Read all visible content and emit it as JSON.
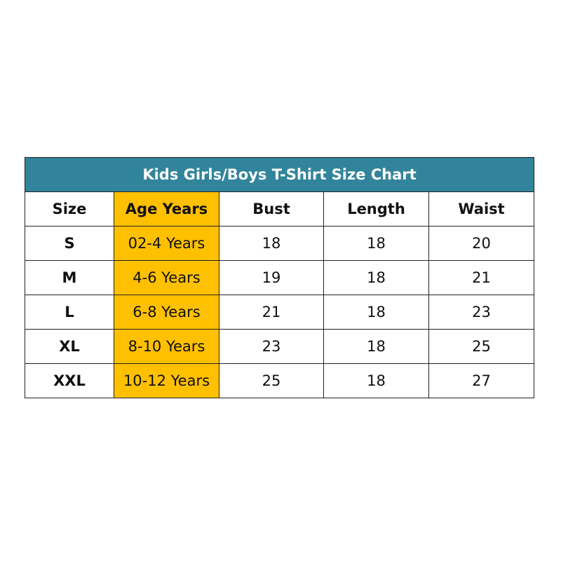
{
  "title": "Kids Girls/Boys T-Shirt Size Chart",
  "colors": {
    "title_bg": "#31849B",
    "age_column_bg": "#FFC000"
  },
  "headers": [
    "Size",
    "Age Years",
    "Bust",
    "Length",
    "Waist"
  ],
  "rows": [
    [
      "S",
      "02-4 Years",
      "18",
      "18",
      "20"
    ],
    [
      "M",
      "4-6 Years",
      "19",
      "18",
      "21"
    ],
    [
      "L",
      "6-8 Years",
      "21",
      "18",
      "23"
    ],
    [
      "XL",
      "8-10 Years",
      "23",
      "18",
      "25"
    ],
    [
      "XXL",
      "10-12 Years",
      "25",
      "18",
      "27"
    ]
  ]
}
